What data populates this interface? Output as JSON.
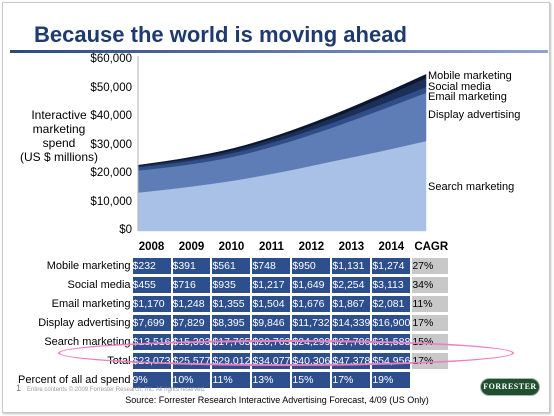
{
  "title": "Because the world is moving ahead",
  "y_axis_label": [
    "Interactive",
    "marketing",
    "spend",
    "(US $ millions)"
  ],
  "chart_data": {
    "type": "area",
    "stacked": true,
    "categories": [
      "2008",
      "2009",
      "2010",
      "2011",
      "2012",
      "2013",
      "2014"
    ],
    "ylim": [
      0,
      60000
    ],
    "yticks": [
      "$0",
      "$10,000",
      "$20,000",
      "$30,000",
      "$40,000",
      "$50,000",
      "$60,000"
    ],
    "ytick_values": [
      0,
      10000,
      20000,
      30000,
      40000,
      50000,
      60000
    ],
    "series": [
      {
        "name": "Search marketing",
        "values": [
          13516,
          15393,
          17765,
          20763,
          24299,
          27786,
          31588
        ],
        "color": "#a9c1e6"
      },
      {
        "name": "Display advertising",
        "values": [
          7699,
          7829,
          8395,
          9846,
          11732,
          14339,
          16900
        ],
        "color": "#5e7cb6"
      },
      {
        "name": "Email marketing",
        "values": [
          1170,
          1248,
          1355,
          1504,
          1676,
          1867,
          2081
        ],
        "color": "#2f4d86"
      },
      {
        "name": "Social media",
        "values": [
          455,
          716,
          935,
          1217,
          1649,
          2254,
          3113
        ],
        "color": "#1b2f58"
      },
      {
        "name": "Mobile marketing",
        "values": [
          232,
          391,
          561,
          748,
          950,
          1131,
          1274
        ],
        "color": "#0c1630"
      }
    ]
  },
  "series_labels": [
    "Mobile marketing",
    "Social media",
    "Email marketing",
    "Display advertising",
    "Search marketing"
  ],
  "table": {
    "years": [
      "2008",
      "2009",
      "2010",
      "2011",
      "2012",
      "2013",
      "2014"
    ],
    "cagr_header": "CAGR",
    "rows": [
      {
        "label": "Mobile marketing",
        "cells": [
          "$232",
          "$391",
          "$561",
          "$748",
          "$950",
          "$1,131",
          "$1,274"
        ],
        "cagr": "27%"
      },
      {
        "label": "Social media",
        "cells": [
          "$455",
          "$716",
          "$935",
          "$1,217",
          "$1,649",
          "$2,254",
          "$3,113"
        ],
        "cagr": "34%"
      },
      {
        "label": "Email marketing",
        "cells": [
          "$1,170",
          "$1,248",
          "$1,355",
          "$1,504",
          "$1,676",
          "$1,867",
          "$2,081"
        ],
        "cagr": "11%"
      },
      {
        "label": "Display advertising",
        "cells": [
          "$7,699",
          "$7,829",
          "$8,395",
          "$9,846",
          "$11,732",
          "$14,339",
          "$16,900"
        ],
        "cagr": "17%"
      },
      {
        "label": "Search marketing",
        "cells": [
          "$13,516",
          "$15,393",
          "$17,765",
          "$20,763",
          "$24,299",
          "$27,786",
          "$31,588"
        ],
        "cagr": "15%"
      },
      {
        "label": "Total",
        "cells": [
          "$23,073",
          "$25,577",
          "$29,012",
          "$34,077",
          "$40,306",
          "$47,378",
          "$54,956"
        ],
        "cagr": "17%"
      },
      {
        "label": "Percent of all ad spend",
        "cells": [
          "9%",
          "10%",
          "11%",
          "13%",
          "15%",
          "17%",
          "19%"
        ],
        "cagr": ""
      }
    ]
  },
  "footer": {
    "slide_number": "1",
    "copyright": "Entire contents © 2009  Forrester Research, Inc. All rights reserved.",
    "source": "Source: Forrester Research Interactive Advertising Forecast, 4/09 (US Only)",
    "logo": "FORRESTER"
  }
}
